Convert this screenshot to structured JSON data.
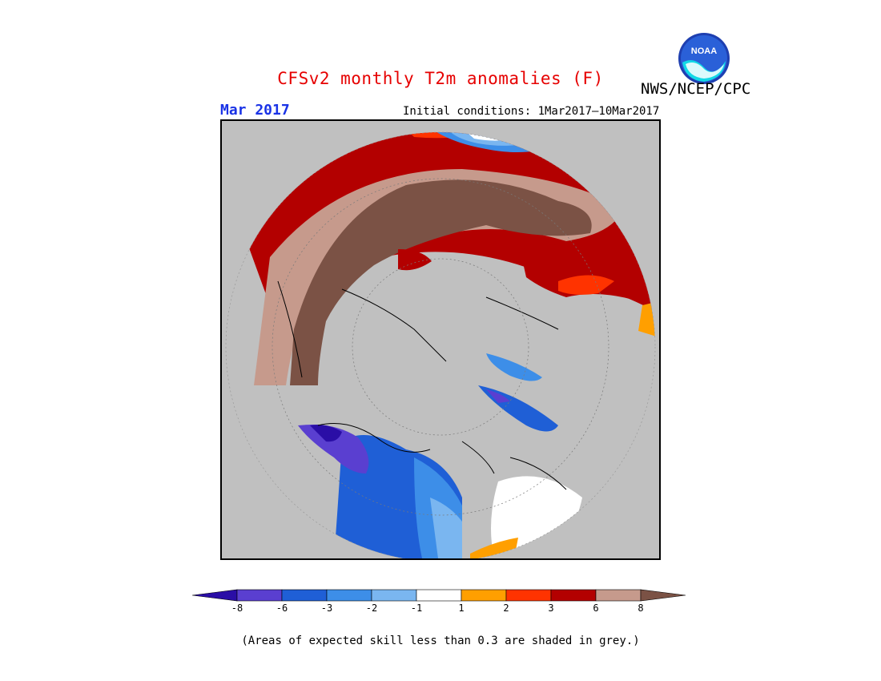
{
  "title": "CFSv2 monthly T2m anomalies (F)",
  "agency": "NWS/NCEP/CPC",
  "logo_text": "NOAA",
  "month": "Mar 2017",
  "initial_conditions": "Initial conditions: 1Mar2017–10Mar2017",
  "colorbar": {
    "colors": [
      "#2a0ea6",
      "#5a3fd0",
      "#1f5fd6",
      "#3d8ee8",
      "#7ab6f0",
      "#ffffff",
      "#ff9f00",
      "#ff3300",
      "#b30000",
      "#c69a8c",
      "#7b5245"
    ],
    "tick_labels": [
      "-8",
      "-6",
      "-3",
      "-2",
      "-1",
      "1",
      "2",
      "3",
      "6",
      "8"
    ]
  },
  "footnote": "(Areas of expected skill less than 0.3 are shaded in grey.)"
}
